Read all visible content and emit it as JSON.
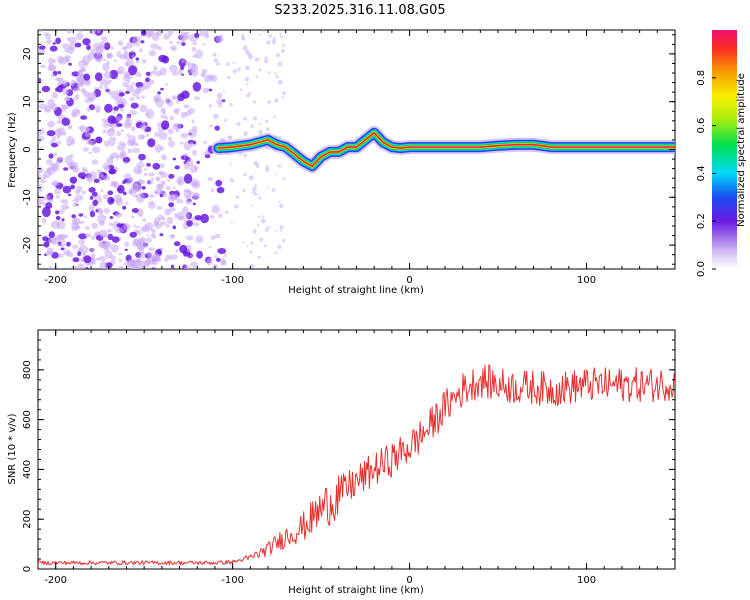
{
  "title": "S233.2025.316.11.08.G05",
  "colors": {
    "snr_line": "#e83030",
    "scatter_dark": "#6a1ae0",
    "scatter_light": "#c8a8f5"
  },
  "chart_data": [
    {
      "type": "heatmap",
      "xlabel": "Height of straight line (km)",
      "ylabel": "Frequency (Hz)",
      "xlim": [
        -210,
        150
      ],
      "ylim": [
        -25,
        25
      ],
      "x_ticks": [
        -200,
        -100,
        0,
        100
      ],
      "y_ticks": [
        -20,
        -10,
        0,
        10,
        20
      ],
      "colorbar": {
        "label": "Normalized spectral amplitude",
        "range": [
          0,
          1
        ],
        "ticks": [
          "0.0",
          "0.2",
          "0.4",
          "0.6",
          "0.8"
        ],
        "tick_values": [
          0.0,
          0.2,
          0.4,
          0.6,
          0.8
        ]
      },
      "noise_region_x": [
        -210,
        -105
      ],
      "signal_trace": {
        "x": [
          -108,
          -100,
          -90,
          -80,
          -75,
          -70,
          -65,
          -60,
          -55,
          -50,
          -45,
          -40,
          -35,
          -30,
          -25,
          -20,
          -15,
          -10,
          -5,
          0,
          10,
          20,
          30,
          40,
          50,
          60,
          70,
          80,
          90,
          100,
          110,
          120,
          130,
          140,
          150
        ],
        "y": [
          0.3,
          0.5,
          1.0,
          2.0,
          1.0,
          0.5,
          -1.0,
          -2.5,
          -3.5,
          -1.5,
          -0.5,
          -0.5,
          0.5,
          0.5,
          2.0,
          3.5,
          1.5,
          0.5,
          0.3,
          0.5,
          0.5,
          0.5,
          0.5,
          0.5,
          0.8,
          1.0,
          1.0,
          0.5,
          0.5,
          0.5,
          0.5,
          0.5,
          0.5,
          0.5,
          0.5
        ]
      }
    },
    {
      "type": "line",
      "xlabel": "Height of straight line (km)",
      "ylabel": "SNR (10 * v/v)",
      "xlim": [
        -210,
        150
      ],
      "ylim": [
        0,
        960
      ],
      "x_ticks": [
        -200,
        -100,
        0,
        100
      ],
      "y_ticks": [
        0,
        200,
        400,
        600,
        800
      ],
      "series": [
        {
          "name": "SNR",
          "x": [
            -210,
            -200,
            -180,
            -160,
            -140,
            -120,
            -110,
            -100,
            -90,
            -80,
            -70,
            -60,
            -50,
            -40,
            -30,
            -20,
            -10,
            0,
            10,
            20,
            30,
            40,
            50,
            60,
            70,
            80,
            90,
            100,
            110,
            120,
            130,
            140,
            150
          ],
          "values": [
            25,
            25,
            25,
            25,
            25,
            25,
            25,
            28,
            45,
            80,
            130,
            170,
            240,
            300,
            350,
            400,
            440,
            490,
            560,
            650,
            720,
            760,
            740,
            730,
            730,
            720,
            730,
            740,
            740,
            740,
            740,
            740,
            750
          ]
        }
      ]
    }
  ]
}
